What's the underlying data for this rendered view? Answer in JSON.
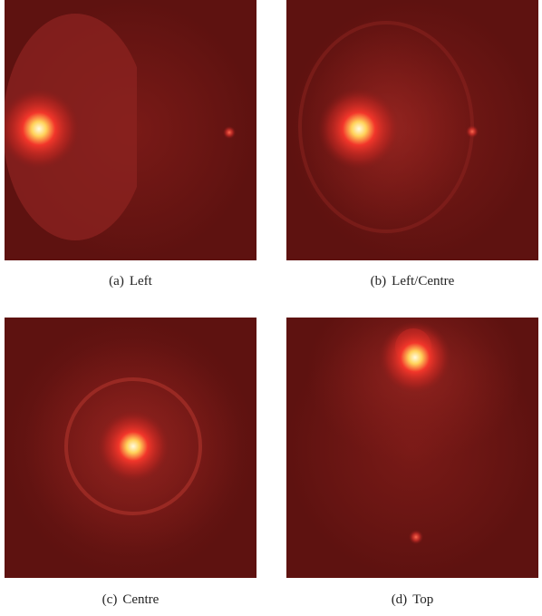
{
  "panels": [
    {
      "label": "(a)",
      "caption": "Left"
    },
    {
      "label": "(b)",
      "caption": "Left/Centre"
    },
    {
      "label": "(c)",
      "caption": "Centre"
    },
    {
      "label": "(d)",
      "caption": "Top"
    }
  ]
}
